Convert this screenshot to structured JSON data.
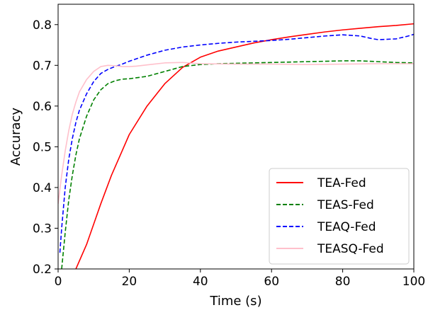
{
  "chart_data": {
    "type": "line",
    "xlabel": "Time (s)",
    "ylabel": "Accuracy",
    "xlim": [
      0,
      100
    ],
    "ylim": [
      0.2,
      0.85
    ],
    "xticks": [
      0,
      20,
      40,
      60,
      80,
      100
    ],
    "xtick_labels": [
      "0",
      "20",
      "40",
      "60",
      "80",
      "100"
    ],
    "yticks": [
      0.2,
      0.3,
      0.4,
      0.5,
      0.6,
      0.7,
      0.8
    ],
    "ytick_labels": [
      "0.2",
      "0.3",
      "0.4",
      "0.5",
      "0.6",
      "0.7",
      "0.8"
    ],
    "grid": false,
    "legend_position": "lower-right",
    "series": [
      {
        "name": "TEA-Fed",
        "color": "#ff0000",
        "style": "solid",
        "x": [
          5,
          8,
          10,
          12,
          15,
          18,
          20,
          25,
          30,
          35,
          40,
          45,
          50,
          55,
          60,
          65,
          70,
          75,
          80,
          85,
          90,
          95,
          100
        ],
        "y": [
          0.2,
          0.26,
          0.31,
          0.36,
          0.43,
          0.49,
          0.53,
          0.6,
          0.655,
          0.695,
          0.72,
          0.735,
          0.745,
          0.755,
          0.763,
          0.77,
          0.776,
          0.782,
          0.787,
          0.791,
          0.795,
          0.798,
          0.802
        ]
      },
      {
        "name": "TEAS-Fed",
        "color": "#008000",
        "style": "dashed",
        "x": [
          1,
          2,
          3,
          4,
          5,
          6,
          8,
          10,
          12,
          14,
          16,
          18,
          20,
          25,
          30,
          35,
          40,
          45,
          50,
          60,
          70,
          80,
          85,
          90,
          95,
          100
        ],
        "y": [
          0.2,
          0.29,
          0.37,
          0.43,
          0.48,
          0.52,
          0.575,
          0.615,
          0.64,
          0.655,
          0.662,
          0.666,
          0.667,
          0.673,
          0.685,
          0.697,
          0.702,
          0.704,
          0.705,
          0.707,
          0.709,
          0.711,
          0.711,
          0.709,
          0.707,
          0.706
        ]
      },
      {
        "name": "TEAQ-Fed",
        "color": "#0000ff",
        "style": "dashed",
        "x": [
          0.5,
          1,
          2,
          3,
          4,
          5,
          6,
          8,
          10,
          12,
          14,
          16,
          18,
          20,
          25,
          30,
          35,
          40,
          45,
          50,
          55,
          60,
          65,
          70,
          75,
          80,
          85,
          88,
          90,
          95,
          98,
          100
        ],
        "y": [
          0.24,
          0.3,
          0.4,
          0.47,
          0.52,
          0.56,
          0.59,
          0.63,
          0.66,
          0.68,
          0.69,
          0.697,
          0.703,
          0.71,
          0.725,
          0.737,
          0.745,
          0.75,
          0.754,
          0.757,
          0.759,
          0.761,
          0.764,
          0.768,
          0.772,
          0.775,
          0.772,
          0.766,
          0.763,
          0.765,
          0.771,
          0.776
        ]
      },
      {
        "name": "TEASQ-Fed",
        "color": "#ffc0cb",
        "style": "solid",
        "x": [
          0,
          1,
          2,
          3,
          4,
          5,
          6,
          8,
          10,
          12,
          14,
          16,
          18,
          20,
          22,
          25,
          30,
          35,
          40,
          50,
          60,
          70,
          80,
          90,
          100
        ],
        "y": [
          0.36,
          0.43,
          0.49,
          0.54,
          0.58,
          0.61,
          0.635,
          0.665,
          0.685,
          0.697,
          0.7,
          0.699,
          0.697,
          0.697,
          0.698,
          0.701,
          0.706,
          0.707,
          0.704,
          0.703,
          0.703,
          0.702,
          0.703,
          0.704,
          0.704
        ]
      }
    ]
  }
}
